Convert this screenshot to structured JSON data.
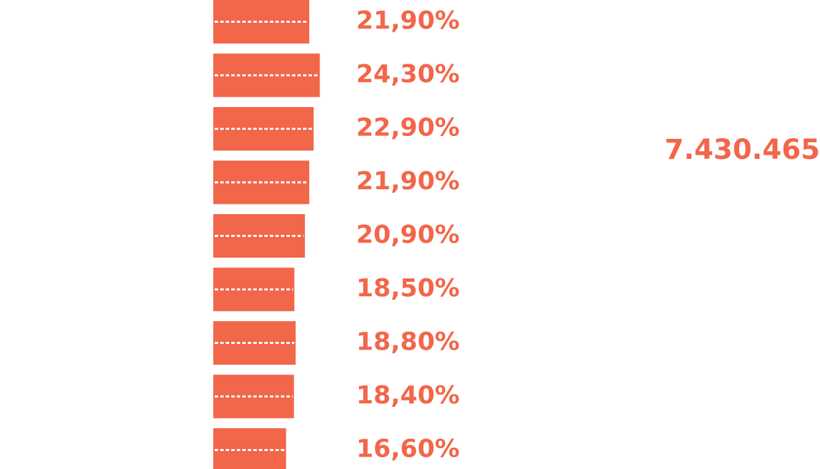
{
  "colors": {
    "accent": "#F2664A",
    "dots": "#FFFFFF"
  },
  "total": "7.430.465",
  "chart_data": {
    "type": "bar",
    "orientation": "horizontal",
    "values": [
      21.9,
      24.3,
      22.9,
      21.9,
      20.9,
      18.5,
      18.8,
      18.4,
      16.6
    ],
    "labels": [
      "21,90%",
      "24,30%",
      "22,90%",
      "21,90%",
      "20,90%",
      "18,50%",
      "18,80%",
      "18,40%",
      "16,60%"
    ],
    "unit": "%",
    "grid": false,
    "legend": false
  }
}
